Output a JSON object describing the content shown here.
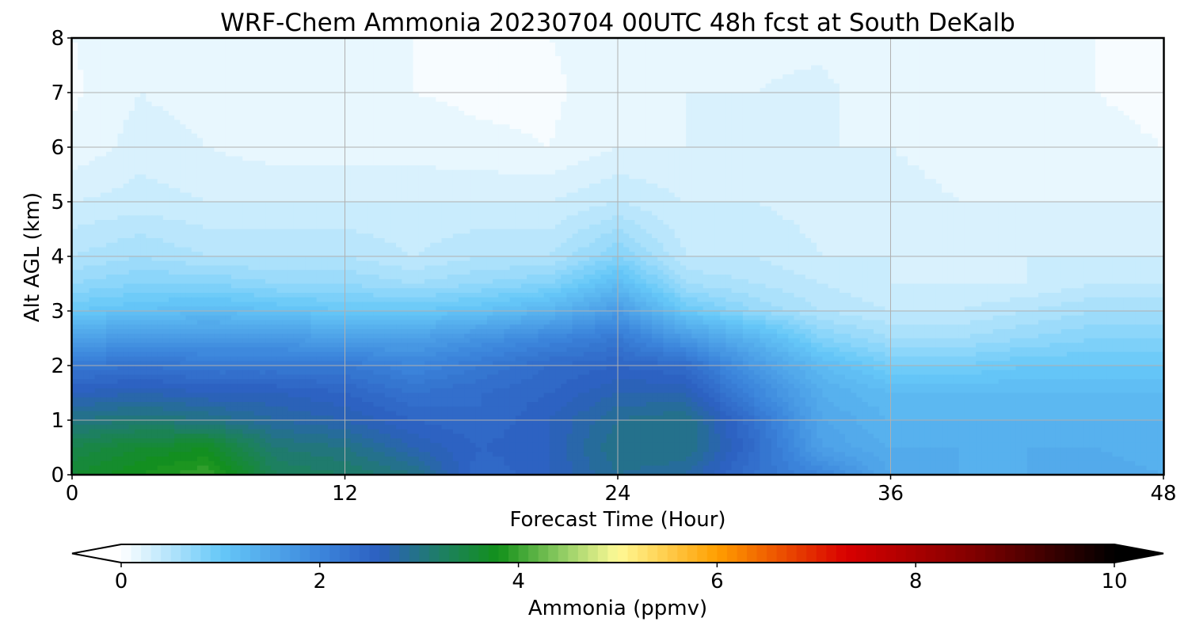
{
  "chart_data": {
    "type": "heatmap",
    "title": "WRF-Chem Ammonia  20230704 00UTC 48h fcst at South DeKalb",
    "xlabel": "Forecast Time (Hour)",
    "ylabel": "Alt AGL (km)",
    "xlim": [
      0,
      48
    ],
    "ylim": [
      0,
      8
    ],
    "x_ticks": [
      0,
      12,
      24,
      36,
      48
    ],
    "y_ticks": [
      0,
      1,
      2,
      3,
      4,
      5,
      6,
      7,
      8
    ],
    "grid": true,
    "colorbar": {
      "label": "Ammonia  (ppmv)",
      "range": [
        0,
        10
      ],
      "ticks": [
        0,
        2,
        4,
        6,
        8,
        10
      ],
      "extend": "both",
      "levels": 100,
      "stops": [
        {
          "v": 0.0,
          "c": "#ffffff"
        },
        {
          "v": 1.0,
          "c": "#66c8f8"
        },
        {
          "v": 2.0,
          "c": "#3c86dc"
        },
        {
          "v": 2.6,
          "c": "#2c5fc0"
        },
        {
          "v": 3.2,
          "c": "#1e7e66"
        },
        {
          "v": 3.8,
          "c": "#12901a"
        },
        {
          "v": 4.5,
          "c": "#9cd26a"
        },
        {
          "v": 5.0,
          "c": "#fffa96"
        },
        {
          "v": 6.0,
          "c": "#ff9e00"
        },
        {
          "v": 7.3,
          "c": "#d80000"
        },
        {
          "v": 8.6,
          "c": "#800000"
        },
        {
          "v": 10.0,
          "c": "#000000"
        }
      ]
    },
    "x": [
      0,
      3,
      6,
      9,
      12,
      15,
      18,
      21,
      24,
      27,
      30,
      33,
      36,
      39,
      42,
      45,
      48
    ],
    "y": [
      0,
      0.5,
      1,
      1.5,
      2,
      2.5,
      3,
      3.5,
      4,
      5,
      6,
      7,
      8
    ],
    "z": [
      [
        3.6,
        3.8,
        4.0,
        3.3,
        3.2,
        3.0,
        2.4,
        2.6,
        2.9,
        2.8,
        2.3,
        2.0,
        1.5,
        1.4,
        1.4,
        1.5,
        1.4
      ],
      [
        3.4,
        3.6,
        3.7,
        3.1,
        3.0,
        2.7,
        2.5,
        2.6,
        3.0,
        3.0,
        2.4,
        1.6,
        1.4,
        1.4,
        1.4,
        1.4,
        1.3
      ],
      [
        3.0,
        3.1,
        3.0,
        2.8,
        2.7,
        2.5,
        2.4,
        2.6,
        2.9,
        3.0,
        2.3,
        1.5,
        1.3,
        1.3,
        1.3,
        1.3,
        1.3
      ],
      [
        2.6,
        2.7,
        2.6,
        2.6,
        2.5,
        2.3,
        2.4,
        2.5,
        2.7,
        2.7,
        2.0,
        1.4,
        1.2,
        1.2,
        1.2,
        1.2,
        1.2
      ],
      [
        2.2,
        2.3,
        2.2,
        2.2,
        2.2,
        2.0,
        2.2,
        2.4,
        2.5,
        2.4,
        1.7,
        1.2,
        0.9,
        0.9,
        1.0,
        1.0,
        1.0
      ],
      [
        1.6,
        1.7,
        1.7,
        1.7,
        1.6,
        1.6,
        1.8,
        2.0,
        2.2,
        1.7,
        1.3,
        0.8,
        0.6,
        0.6,
        0.7,
        0.8,
        0.8
      ],
      [
        1.0,
        1.1,
        1.2,
        1.1,
        1.0,
        1.0,
        1.1,
        1.3,
        1.7,
        1.0,
        0.7,
        0.5,
        0.4,
        0.4,
        0.5,
        0.6,
        0.6
      ],
      [
        0.7,
        0.8,
        0.8,
        0.7,
        0.7,
        0.6,
        0.7,
        0.8,
        1.2,
        0.6,
        0.5,
        0.4,
        0.3,
        0.3,
        0.3,
        0.4,
        0.4
      ],
      [
        0.5,
        0.6,
        0.5,
        0.5,
        0.5,
        0.4,
        0.5,
        0.5,
        0.8,
        0.4,
        0.4,
        0.3,
        0.3,
        0.3,
        0.3,
        0.3,
        0.3
      ],
      [
        0.3,
        0.35,
        0.3,
        0.3,
        0.3,
        0.3,
        0.3,
        0.3,
        0.4,
        0.3,
        0.3,
        0.25,
        0.25,
        0.2,
        0.2,
        0.2,
        0.2
      ],
      [
        0.12,
        0.25,
        0.2,
        0.15,
        0.15,
        0.15,
        0.12,
        0.1,
        0.2,
        0.2,
        0.25,
        0.2,
        0.2,
        0.15,
        0.12,
        0.12,
        0.1
      ],
      [
        0.08,
        0.2,
        0.15,
        0.12,
        0.12,
        0.1,
        0.08,
        0.08,
        0.15,
        0.2,
        0.2,
        0.22,
        0.15,
        0.12,
        0.1,
        0.1,
        0.08
      ],
      [
        0.1,
        0.15,
        0.12,
        0.1,
        0.1,
        0.1,
        0.1,
        0.1,
        0.15,
        0.15,
        0.18,
        0.18,
        0.12,
        0.1,
        0.1,
        0.1,
        0.08
      ]
    ]
  }
}
